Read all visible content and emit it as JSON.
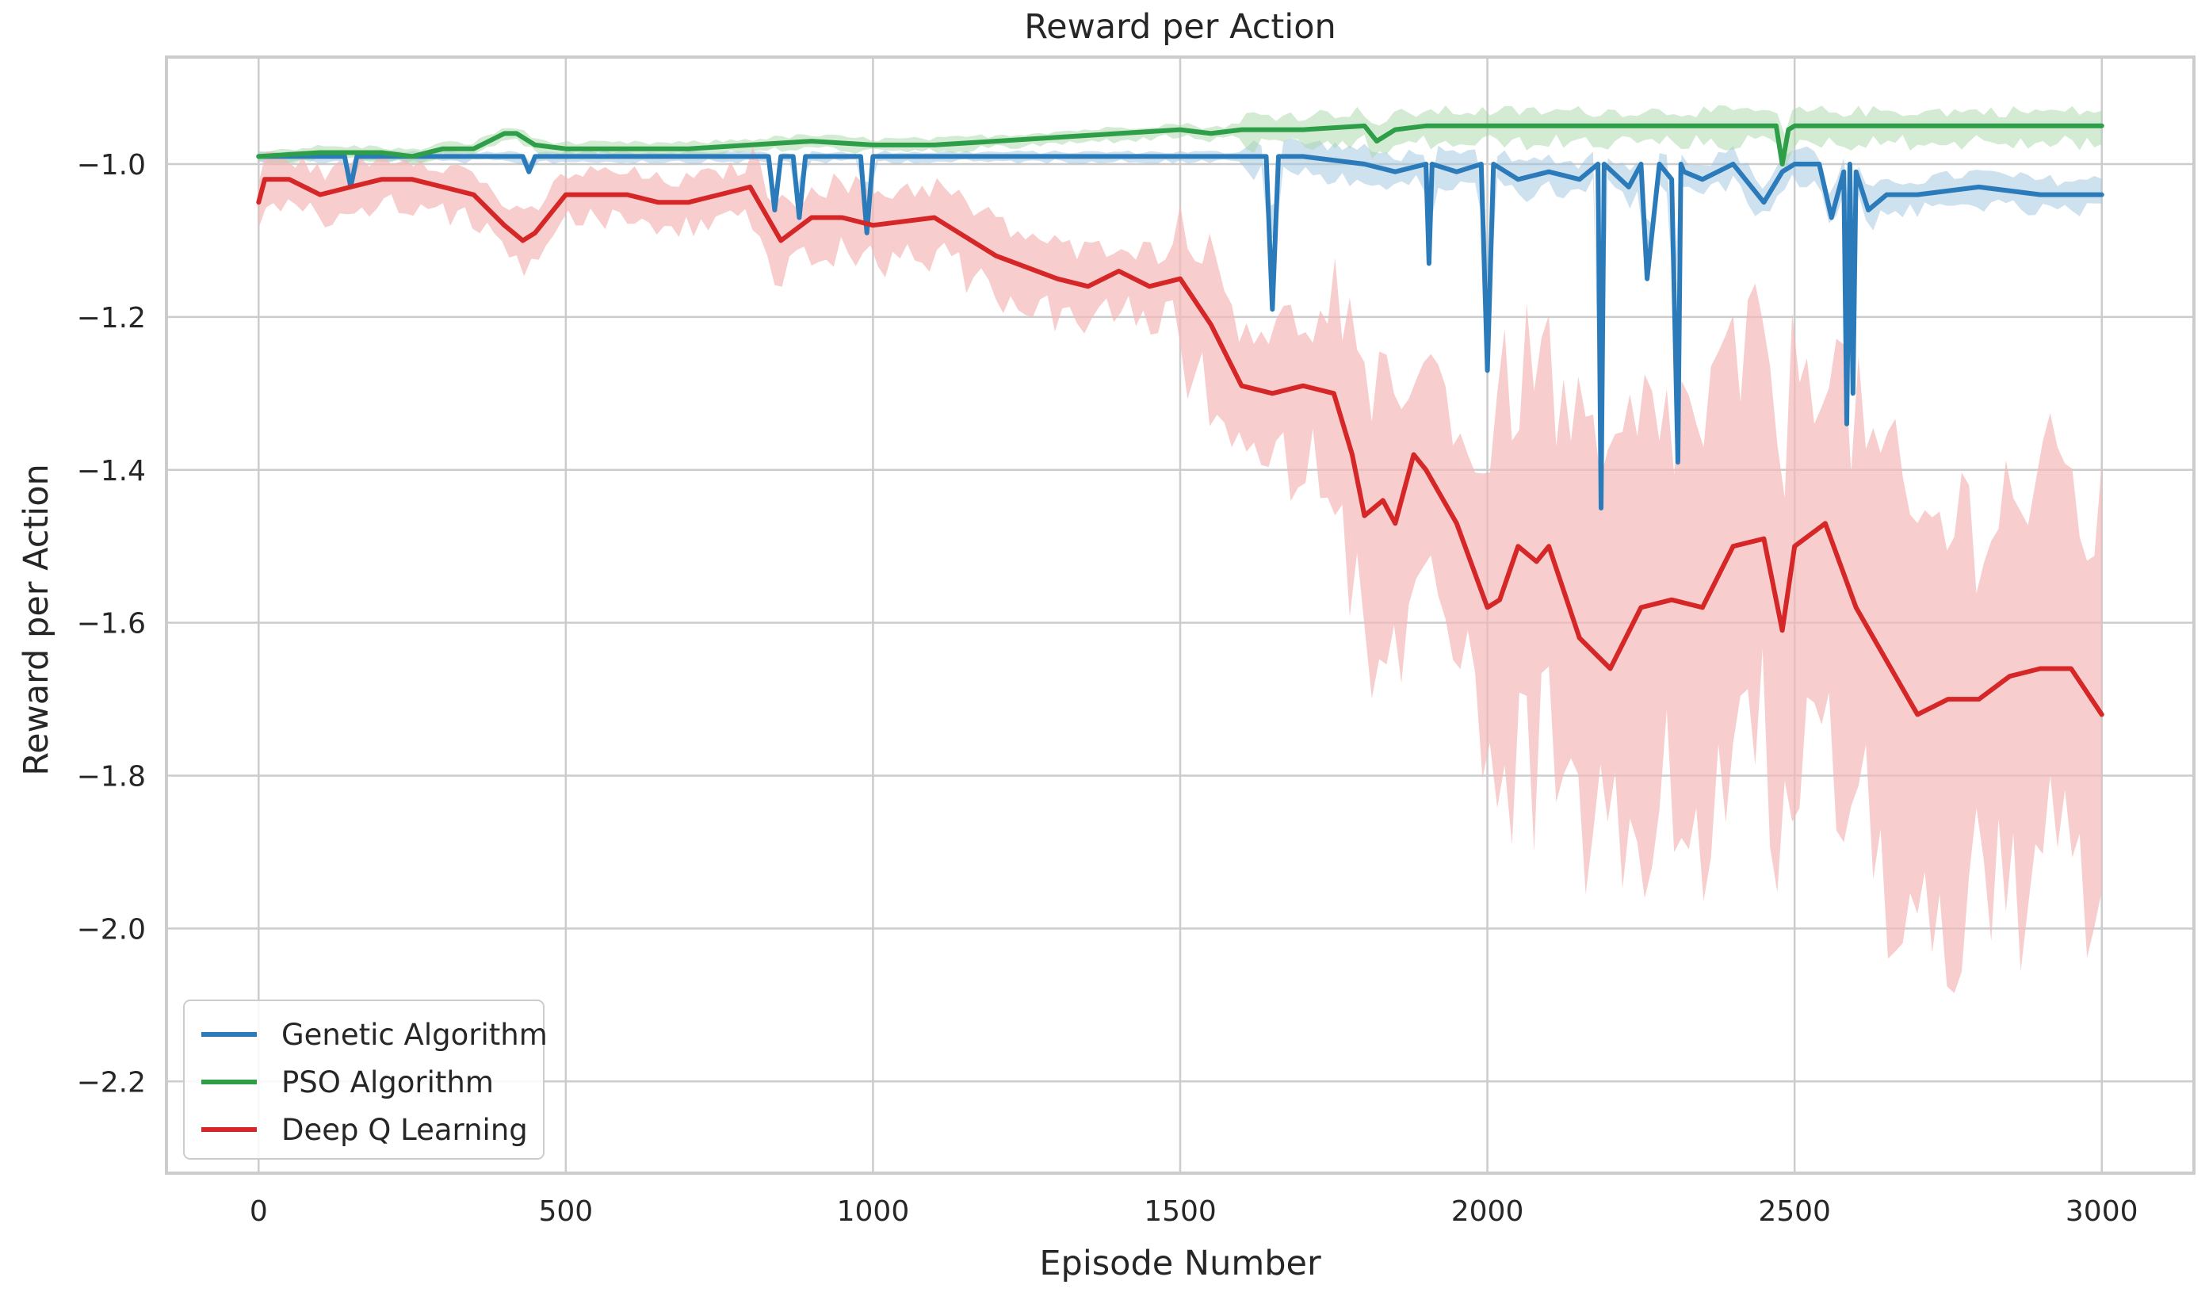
{
  "chart_data": {
    "type": "line",
    "title": "Reward per Action",
    "xlabel": "Episode Number",
    "ylabel": "Reward per Action",
    "xlim": [
      -150,
      3150
    ],
    "ylim": [
      -2.32,
      -0.86
    ],
    "xticks": [
      0,
      500,
      1000,
      1500,
      2000,
      2500,
      3000
    ],
    "xtick_labels": [
      "0",
      "500",
      "1000",
      "1500",
      "2000",
      "2500",
      "3000"
    ],
    "yticks": [
      -2.2,
      -2.0,
      -1.8,
      -1.6,
      -1.4,
      -1.2,
      -1.0
    ],
    "ytick_labels": [
      "−2.2",
      "−2.0",
      "−1.8",
      "−1.6",
      "−1.4",
      "−1.2",
      "−1.0"
    ],
    "grid": true,
    "legend_position": "lower-left",
    "series": [
      {
        "name": "Genetic Algorithm",
        "color": "#2b7bba",
        "band_color": "#9ec3e0",
        "x": [
          0,
          100,
          140,
          150,
          160,
          200,
          300,
          400,
          430,
          440,
          450,
          500,
          600,
          700,
          800,
          830,
          840,
          850,
          870,
          880,
          890,
          950,
          980,
          990,
          1000,
          1100,
          1200,
          1300,
          1400,
          1500,
          1600,
          1640,
          1650,
          1660,
          1700,
          1800,
          1850,
          1900,
          1905,
          1910,
          1950,
          1990,
          2000,
          2010,
          2050,
          2100,
          2150,
          2180,
          2185,
          2190,
          2230,
          2250,
          2260,
          2280,
          2300,
          2310,
          2315,
          2320,
          2350,
          2400,
          2450,
          2480,
          2500,
          2540,
          2560,
          2580,
          2585,
          2590,
          2595,
          2600,
          2620,
          2650,
          2700,
          2800,
          2900,
          3000
        ],
        "y": [
          -0.99,
          -0.99,
          -0.99,
          -1.03,
          -0.99,
          -0.99,
          -0.99,
          -0.99,
          -0.99,
          -1.01,
          -0.99,
          -0.99,
          -0.99,
          -0.99,
          -0.99,
          -0.99,
          -1.06,
          -0.99,
          -0.99,
          -1.07,
          -0.99,
          -0.99,
          -0.99,
          -1.09,
          -0.99,
          -0.99,
          -0.99,
          -0.99,
          -0.99,
          -0.99,
          -0.99,
          -0.99,
          -1.19,
          -0.99,
          -0.99,
          -1.0,
          -1.01,
          -1.0,
          -1.13,
          -1.0,
          -1.01,
          -1.0,
          -1.27,
          -1.0,
          -1.02,
          -1.01,
          -1.02,
          -1.0,
          -1.45,
          -1.0,
          -1.03,
          -1.0,
          -1.15,
          -1.0,
          -1.02,
          -1.39,
          -1.0,
          -1.01,
          -1.02,
          -1.0,
          -1.05,
          -1.01,
          -1.0,
          -1.0,
          -1.07,
          -1.01,
          -1.34,
          -1.0,
          -1.3,
          -1.01,
          -1.06,
          -1.04,
          -1.04,
          -1.03,
          -1.04,
          -1.04
        ]
      },
      {
        "name": "PSO Algorithm",
        "color": "#2e9e48",
        "band_color": "#a7d8a8",
        "x": [
          0,
          100,
          200,
          250,
          300,
          350,
          400,
          420,
          450,
          500,
          600,
          700,
          800,
          900,
          1000,
          1100,
          1200,
          1300,
          1400,
          1500,
          1550,
          1600,
          1700,
          1800,
          1820,
          1850,
          1900,
          2000,
          2100,
          2200,
          2300,
          2400,
          2470,
          2480,
          2490,
          2500,
          2600,
          2700,
          2800,
          2900,
          3000
        ],
        "y": [
          -0.99,
          -0.985,
          -0.985,
          -0.99,
          -0.98,
          -0.98,
          -0.96,
          -0.96,
          -0.975,
          -0.98,
          -0.98,
          -0.98,
          -0.975,
          -0.97,
          -0.975,
          -0.975,
          -0.97,
          -0.965,
          -0.96,
          -0.955,
          -0.96,
          -0.955,
          -0.955,
          -0.95,
          -0.97,
          -0.955,
          -0.95,
          -0.95,
          -0.95,
          -0.95,
          -0.95,
          -0.95,
          -0.95,
          -1.0,
          -0.955,
          -0.95,
          -0.95,
          -0.95,
          -0.95,
          -0.95,
          -0.95
        ]
      },
      {
        "name": "Deep Q Learning",
        "color": "#d62728",
        "band_color": "#f4b8b8",
        "x": [
          0,
          10,
          50,
          100,
          150,
          200,
          250,
          300,
          350,
          400,
          430,
          450,
          500,
          550,
          600,
          650,
          700,
          750,
          800,
          850,
          900,
          950,
          1000,
          1100,
          1200,
          1300,
          1350,
          1400,
          1450,
          1500,
          1550,
          1600,
          1650,
          1700,
          1750,
          1780,
          1800,
          1830,
          1850,
          1880,
          1900,
          1950,
          2000,
          2020,
          2050,
          2080,
          2100,
          2150,
          2200,
          2250,
          2300,
          2350,
          2400,
          2450,
          2480,
          2500,
          2550,
          2600,
          2650,
          2700,
          2750,
          2800,
          2850,
          2900,
          2950,
          3000
        ],
        "y": [
          -1.05,
          -1.02,
          -1.02,
          -1.04,
          -1.03,
          -1.02,
          -1.02,
          -1.03,
          -1.04,
          -1.08,
          -1.1,
          -1.09,
          -1.04,
          -1.04,
          -1.04,
          -1.05,
          -1.05,
          -1.04,
          -1.03,
          -1.1,
          -1.07,
          -1.07,
          -1.08,
          -1.07,
          -1.12,
          -1.15,
          -1.16,
          -1.14,
          -1.16,
          -1.15,
          -1.21,
          -1.29,
          -1.3,
          -1.29,
          -1.3,
          -1.38,
          -1.46,
          -1.44,
          -1.47,
          -1.38,
          -1.4,
          -1.47,
          -1.58,
          -1.57,
          -1.5,
          -1.52,
          -1.5,
          -1.62,
          -1.66,
          -1.58,
          -1.57,
          -1.58,
          -1.5,
          -1.49,
          -1.61,
          -1.5,
          -1.47,
          -1.58,
          -1.65,
          -1.72,
          -1.7,
          -1.7,
          -1.67,
          -1.66,
          -1.66,
          -1.72
        ]
      }
    ]
  }
}
